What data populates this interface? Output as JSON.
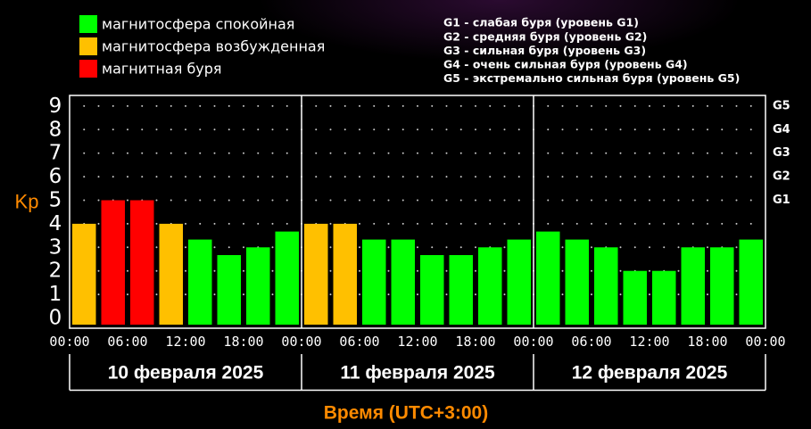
{
  "chart_data": {
    "type": "bar",
    "ylabel": "Kp",
    "xlabel": "Время (UTC+3:00)",
    "ylim": [
      0,
      9
    ],
    "yticks": [
      0,
      1,
      2,
      3,
      4,
      5,
      6,
      7,
      8,
      9
    ],
    "right_axis": [
      {
        "value": 5,
        "label": "G1"
      },
      {
        "value": 6,
        "label": "G2"
      },
      {
        "value": 7,
        "label": "G3"
      },
      {
        "value": 8,
        "label": "G4"
      },
      {
        "value": 9,
        "label": "G5"
      }
    ],
    "xticks": [
      "00:00",
      "06:00",
      "12:00",
      "18:00",
      "00:00",
      "06:00",
      "12:00",
      "18:00",
      "00:00",
      "06:00",
      "12:00",
      "18:00",
      "00:00"
    ],
    "grid": true,
    "legend_position": "top-left",
    "legend": [
      {
        "label": "магнитосфера спокойная",
        "color": "#00ff00"
      },
      {
        "label": "магнитосфера возбужденная",
        "color": "#ffc000"
      },
      {
        "label": "магнитная буря",
        "color": "#ff0000"
      }
    ],
    "storm_scale": [
      "G1 - слабая буря (уровень G1)",
      "G2 - средняя буря (уровень G2)",
      "G3 - сильная буря (уровень G3)",
      "G4 - очень сильная буря (уровень G4)",
      "G5 - экстремально сильная буря (уровень G5)"
    ],
    "days": [
      {
        "label": "10 февраля 2025",
        "values": [
          4,
          5,
          5,
          4,
          3.33,
          2.67,
          3,
          3.67
        ],
        "colors": [
          "#ffc000",
          "#ff0000",
          "#ff0000",
          "#ffc000",
          "#00ff00",
          "#00ff00",
          "#00ff00",
          "#00ff00"
        ]
      },
      {
        "label": "11 февраля 2025",
        "values": [
          4,
          4,
          3.33,
          3.33,
          2.67,
          2.67,
          3,
          3.33
        ],
        "colors": [
          "#ffc000",
          "#ffc000",
          "#00ff00",
          "#00ff00",
          "#00ff00",
          "#00ff00",
          "#00ff00",
          "#00ff00"
        ]
      },
      {
        "label": "12 февраля 2025",
        "values": [
          3.67,
          3.33,
          3,
          2,
          2,
          3,
          3,
          3.33
        ],
        "colors": [
          "#00ff00",
          "#00ff00",
          "#00ff00",
          "#00ff00",
          "#00ff00",
          "#00ff00",
          "#00ff00",
          "#00ff00"
        ]
      }
    ]
  }
}
